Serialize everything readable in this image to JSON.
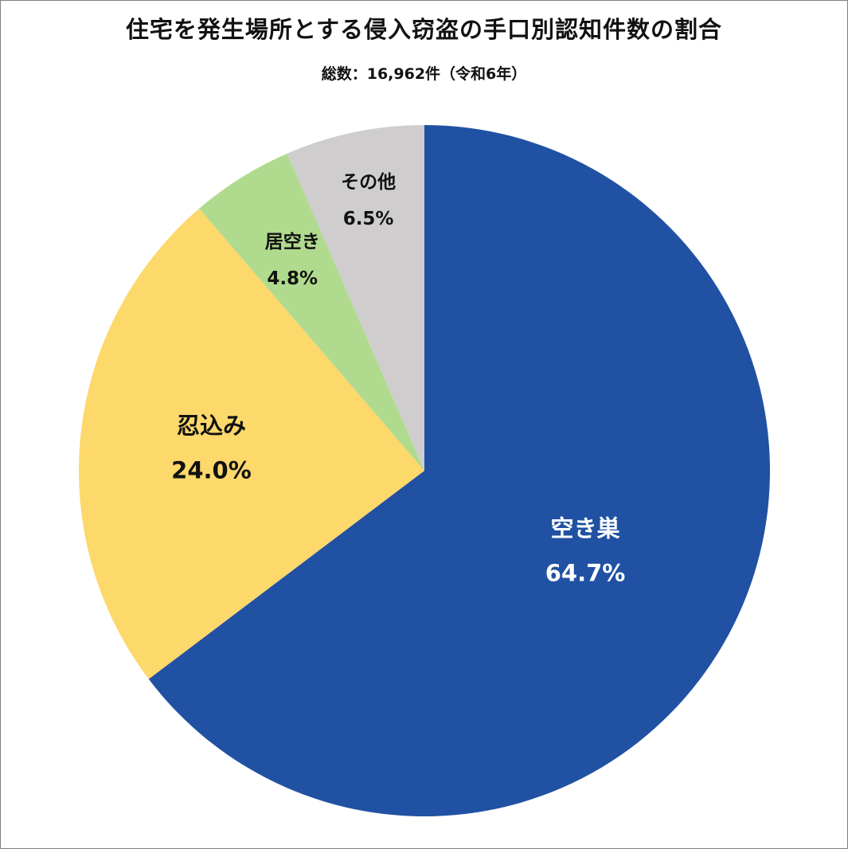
{
  "title": "住宅を発生場所とする侵入窃盗の手口別認知件数の割合",
  "subtitle": "総数：16,962件（令和6年）",
  "chart_data": {
    "type": "pie",
    "title": "住宅を発生場所とする侵入窃盗の手口別認知件数の割合",
    "subtitle": "総数：16,962件（令和6年）",
    "start": "12 o'clock",
    "direction": "clockwise",
    "slices": [
      {
        "label": "空き巣",
        "value": 64.7,
        "value_label": "64.7%",
        "color": "#2051a3",
        "label_color": "#ffffff"
      },
      {
        "label": "忍込み",
        "value": 24.0,
        "value_label": "24.0%",
        "color": "#fdd86b",
        "label_color": "#111111"
      },
      {
        "label": "居空き",
        "value": 4.8,
        "value_label": "4.8%",
        "color": "#b0db8e",
        "label_color": "#111111"
      },
      {
        "label": "その他",
        "value": 6.5,
        "value_label": "6.5%",
        "color": "#cfcdcd",
        "label_color": "#111111"
      }
    ]
  }
}
